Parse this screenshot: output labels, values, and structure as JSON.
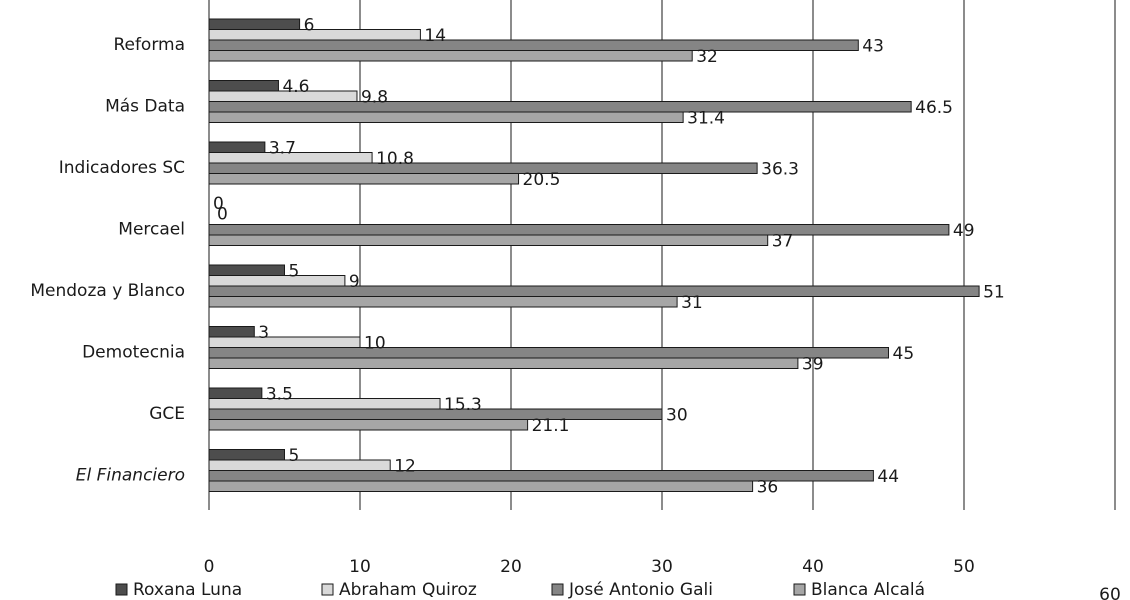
{
  "chart_data": {
    "type": "bar",
    "orientation": "horizontal",
    "categories": [
      "Reforma",
      "Más Data",
      "Indicadores SC",
      "Mercael",
      "Mendoza y Blanco",
      "Demotecnia",
      "GCE",
      "El Financiero"
    ],
    "italic_categories": [
      "El Financiero"
    ],
    "series": [
      {
        "name": "Roxana Luna",
        "color": "#4d4d4d",
        "values": [
          6,
          4.6,
          3.7,
          0,
          5,
          3,
          3.5,
          5
        ]
      },
      {
        "name": "Abraham Quiroz",
        "color": "#d9d9d9",
        "values": [
          14,
          9.8,
          10.8,
          0,
          9,
          10,
          15.3,
          12
        ]
      },
      {
        "name": "José Antonio Gali",
        "color": "#858585",
        "values": [
          43,
          46.5,
          36.3,
          49,
          51,
          45,
          30,
          44
        ]
      },
      {
        "name": "Blanca Alcalá",
        "color": "#a6a6a6",
        "values": [
          32,
          31.4,
          20.5,
          37,
          31,
          39,
          21.1,
          36
        ]
      }
    ],
    "labels": [
      [
        "6",
        "4.6",
        "3.7",
        "0",
        "5",
        "3",
        "3.5",
        "5"
      ],
      [
        "14",
        "9.8",
        "10.8",
        "0",
        "9",
        "10",
        "15.3",
        "12"
      ],
      [
        "43",
        "46.5",
        "36.3",
        "49",
        "51",
        "45",
        "30",
        "44"
      ],
      [
        "32",
        "31.4",
        "20.5",
        "37",
        "31",
        "39",
        "21.1",
        "36"
      ]
    ],
    "x_ticks": [
      "0",
      "10",
      "20",
      "30",
      "40",
      "50",
      "60"
    ],
    "xlim": [
      0,
      60
    ],
    "grid": true,
    "legend_position": "bottom"
  }
}
